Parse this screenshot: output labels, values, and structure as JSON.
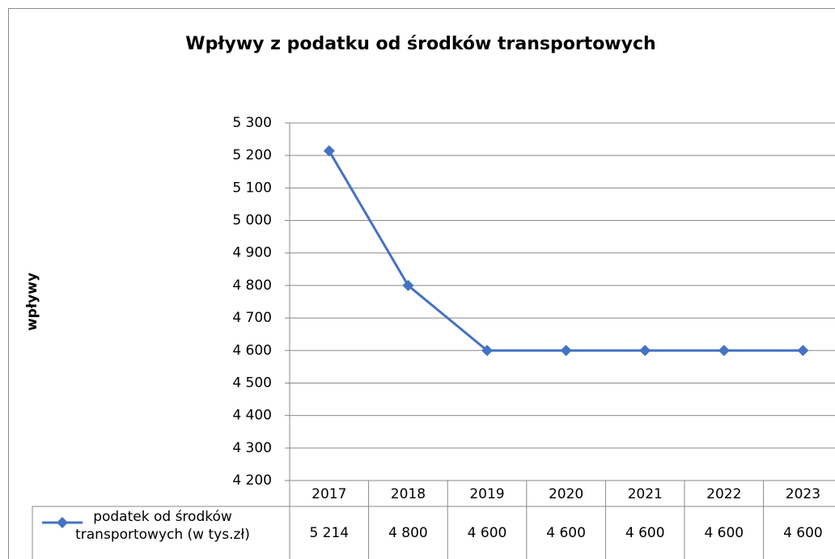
{
  "chart_data": {
    "type": "line",
    "title": "Wpływy z podatku od środków transportowych",
    "y_label": "wpływy",
    "categories": [
      "2017",
      "2018",
      "2019",
      "2020",
      "2021",
      "2022",
      "2023"
    ],
    "series": [
      {
        "name": "podatek od środków transportowych (w tys.zł)",
        "color": "#4472c4",
        "values": [
          5214,
          4800,
          4600,
          4600,
          4600,
          4600,
          4600
        ],
        "value_labels": [
          "5 214",
          "4 800",
          "4 600",
          "4 600",
          "4 600",
          "4 600",
          "4 600"
        ]
      }
    ],
    "ylim": [
      4200,
      5300
    ],
    "yticks": [
      {
        "value": 4200,
        "label": "4 200"
      },
      {
        "value": 4300,
        "label": "4 300"
      },
      {
        "value": 4400,
        "label": "4 400"
      },
      {
        "value": 4500,
        "label": "4 500"
      },
      {
        "value": 4600,
        "label": "4 600"
      },
      {
        "value": 4700,
        "label": "4 700"
      },
      {
        "value": 4800,
        "label": "4 800"
      },
      {
        "value": 4900,
        "label": "4 900"
      },
      {
        "value": 5000,
        "label": "5 000"
      },
      {
        "value": 5100,
        "label": "5 100"
      },
      {
        "value": 5200,
        "label": "5 200"
      },
      {
        "value": 5300,
        "label": "5 300"
      }
    ],
    "grid": true,
    "data_table": true
  }
}
